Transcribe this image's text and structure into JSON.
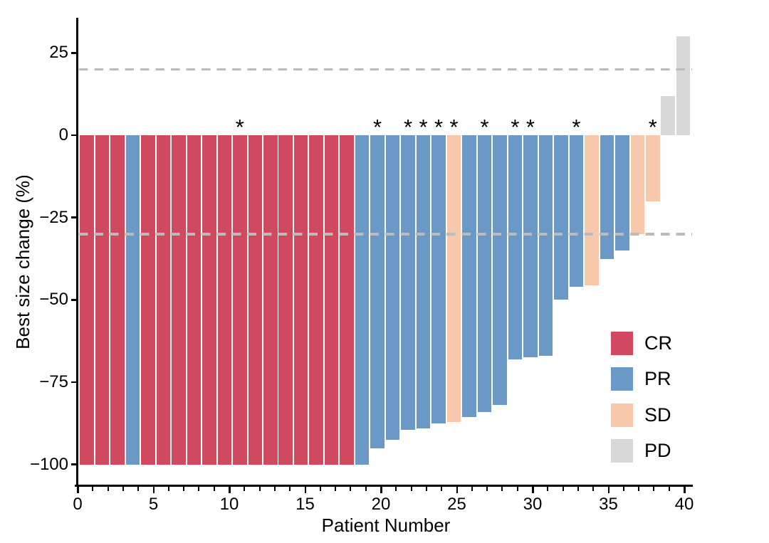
{
  "chart_data": {
    "type": "bar",
    "title": "",
    "xlabel": "Patient Number",
    "ylabel": "Best size change (%)",
    "xlim": [
      0,
      40
    ],
    "ylim": [
      -100,
      35
    ],
    "grid": false,
    "x_tick_values": [
      0,
      5,
      10,
      15,
      20,
      25,
      30,
      35,
      40
    ],
    "x_tick_labels": [
      "0",
      "5",
      "10",
      "15",
      "20",
      "25",
      "30",
      "35",
      "40"
    ],
    "y_ticks": [
      {
        "value": 25,
        "label": "25"
      },
      {
        "value": 0,
        "label": "0"
      },
      {
        "value": -25,
        "label": "−25"
      },
      {
        "value": -50,
        "label": "−50"
      },
      {
        "value": -75,
        "label": "−75"
      },
      {
        "value": -100,
        "label": "−100"
      }
    ],
    "reference_lines": [
      20,
      -30
    ],
    "annotation_symbol": "*",
    "legend_position": "inside-right",
    "legend": [
      {
        "label": "CR",
        "color": "#d0495f"
      },
      {
        "label": "PR",
        "color": "#6b99c7"
      },
      {
        "label": "SD",
        "color": "#f8c8ac"
      },
      {
        "label": "PD",
        "color": "#d8d8d8"
      }
    ],
    "series_name": "Best size change (%)",
    "patients": [
      {
        "patient": 1,
        "value": -100,
        "response": "CR",
        "annotated": false
      },
      {
        "patient": 2,
        "value": -100,
        "response": "CR",
        "annotated": false
      },
      {
        "patient": 3,
        "value": -100,
        "response": "CR",
        "annotated": false
      },
      {
        "patient": 4,
        "value": -100,
        "response": "PR",
        "annotated": false
      },
      {
        "patient": 5,
        "value": -100,
        "response": "CR",
        "annotated": false
      },
      {
        "patient": 6,
        "value": -100,
        "response": "CR",
        "annotated": false
      },
      {
        "patient": 7,
        "value": -100,
        "response": "CR",
        "annotated": false
      },
      {
        "patient": 8,
        "value": -100,
        "response": "CR",
        "annotated": false
      },
      {
        "patient": 9,
        "value": -100,
        "response": "CR",
        "annotated": false
      },
      {
        "patient": 10,
        "value": -100,
        "response": "CR",
        "annotated": false
      },
      {
        "patient": 11,
        "value": -100,
        "response": "CR",
        "annotated": true
      },
      {
        "patient": 12,
        "value": -100,
        "response": "CR",
        "annotated": false
      },
      {
        "patient": 13,
        "value": -100,
        "response": "CR",
        "annotated": false
      },
      {
        "patient": 14,
        "value": -100,
        "response": "CR",
        "annotated": false
      },
      {
        "patient": 15,
        "value": -100,
        "response": "CR",
        "annotated": false
      },
      {
        "patient": 16,
        "value": -100,
        "response": "CR",
        "annotated": false
      },
      {
        "patient": 17,
        "value": -100,
        "response": "CR",
        "annotated": false
      },
      {
        "patient": 18,
        "value": -100,
        "response": "CR",
        "annotated": false
      },
      {
        "patient": 19,
        "value": -100,
        "response": "PR",
        "annotated": false
      },
      {
        "patient": 20,
        "value": -95,
        "response": "PR",
        "annotated": true
      },
      {
        "patient": 21,
        "value": -92.5,
        "response": "PR",
        "annotated": false
      },
      {
        "patient": 22,
        "value": -89.5,
        "response": "PR",
        "annotated": true
      },
      {
        "patient": 23,
        "value": -89,
        "response": "PR",
        "annotated": true
      },
      {
        "patient": 24,
        "value": -87.5,
        "response": "PR",
        "annotated": true
      },
      {
        "patient": 25,
        "value": -87,
        "response": "SD",
        "annotated": true
      },
      {
        "patient": 26,
        "value": -85.5,
        "response": "PR",
        "annotated": false
      },
      {
        "patient": 27,
        "value": -84,
        "response": "PR",
        "annotated": true
      },
      {
        "patient": 28,
        "value": -82,
        "response": "PR",
        "annotated": false
      },
      {
        "patient": 29,
        "value": -68,
        "response": "PR",
        "annotated": true
      },
      {
        "patient": 30,
        "value": -67.5,
        "response": "PR",
        "annotated": true
      },
      {
        "patient": 31,
        "value": -67,
        "response": "PR",
        "annotated": false
      },
      {
        "patient": 32,
        "value": -50,
        "response": "PR",
        "annotated": false
      },
      {
        "patient": 33,
        "value": -46,
        "response": "PR",
        "annotated": true
      },
      {
        "patient": 34,
        "value": -45.5,
        "response": "SD",
        "annotated": false
      },
      {
        "patient": 35,
        "value": -37.5,
        "response": "PR",
        "annotated": false
      },
      {
        "patient": 36,
        "value": -35,
        "response": "PR",
        "annotated": false
      },
      {
        "patient": 37,
        "value": -30,
        "response": "SD",
        "annotated": false
      },
      {
        "patient": 38,
        "value": -20,
        "response": "SD",
        "annotated": true
      },
      {
        "patient": 39,
        "value": 12,
        "response": "PD",
        "annotated": false
      },
      {
        "patient": 40,
        "value": 30,
        "response": "PD",
        "annotated": false
      }
    ]
  },
  "colors": {
    "CR": "#d0495f",
    "PR": "#6b99c7",
    "SD": "#f8c8ac",
    "PD": "#d8d8d8",
    "reference_line": "#bbbbbb",
    "axis": "#000000"
  }
}
